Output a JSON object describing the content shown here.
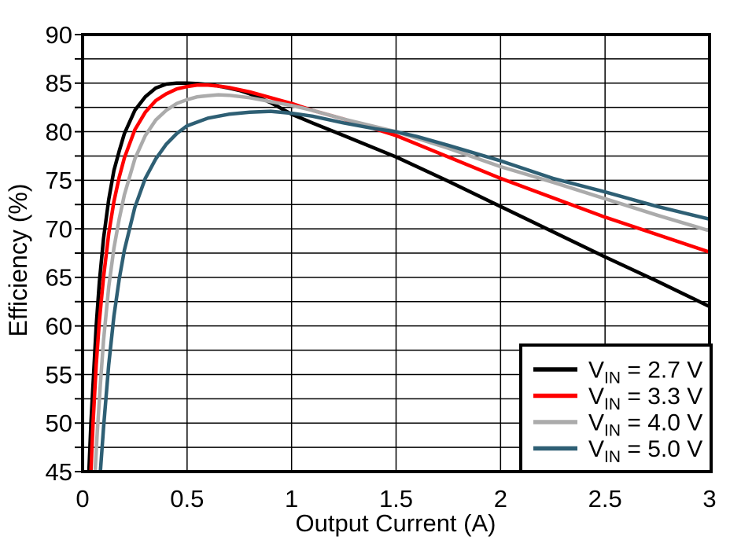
{
  "chart_data": {
    "type": "line",
    "title": "",
    "xlabel": "Output Current (A)",
    "ylabel": "Efficiency (%)",
    "xlim": [
      0,
      3
    ],
    "ylim": [
      45,
      90
    ],
    "x_gridline_step": 0.5,
    "y_gridline_step": 2.5,
    "x_tick_label_step": 0.5,
    "y_tick_label_step": 5,
    "x_tick_labels": [
      "0",
      "0.5",
      "1",
      "1.5",
      "2",
      "2.5",
      "3"
    ],
    "y_tick_labels": [
      "45",
      "50",
      "55",
      "60",
      "65",
      "70",
      "75",
      "80",
      "85",
      "90"
    ],
    "grid": true,
    "legend_position": "bottom-right",
    "frame_color": "#000000",
    "grid_color": "#000000",
    "series": [
      {
        "name": "VIN = 2.7 V",
        "label_main": "V",
        "label_sub": "IN",
        "label_tail": " = 2.7 V",
        "color": "#000000",
        "points": [
          [
            0.03,
            45
          ],
          [
            0.04,
            50
          ],
          [
            0.05,
            54
          ],
          [
            0.065,
            60
          ],
          [
            0.08,
            64.5
          ],
          [
            0.1,
            69
          ],
          [
            0.125,
            73
          ],
          [
            0.15,
            76
          ],
          [
            0.175,
            78
          ],
          [
            0.2,
            79.8
          ],
          [
            0.25,
            82.2
          ],
          [
            0.3,
            83.6
          ],
          [
            0.35,
            84.5
          ],
          [
            0.4,
            84.9
          ],
          [
            0.45,
            85
          ],
          [
            0.5,
            85
          ],
          [
            0.55,
            84.95
          ],
          [
            0.6,
            84.85
          ],
          [
            0.65,
            84.7
          ],
          [
            0.7,
            84.5
          ],
          [
            0.75,
            84.25
          ],
          [
            0.8,
            83.9
          ],
          [
            0.9,
            83
          ],
          [
            1,
            81.8
          ],
          [
            1.1,
            80.9
          ],
          [
            1.25,
            79.6
          ],
          [
            1.5,
            77.4
          ],
          [
            1.75,
            74.9
          ],
          [
            2,
            72.3
          ],
          [
            2.25,
            69.7
          ],
          [
            2.5,
            67.1
          ],
          [
            2.75,
            64.6
          ],
          [
            3,
            62
          ]
        ]
      },
      {
        "name": "VIN = 3.3 V",
        "label_main": "V",
        "label_sub": "IN",
        "label_tail": " = 3.3 V",
        "color": "#ff0000",
        "points": [
          [
            0.04,
            45
          ],
          [
            0.05,
            50
          ],
          [
            0.065,
            56
          ],
          [
            0.08,
            60.5
          ],
          [
            0.1,
            65
          ],
          [
            0.125,
            69.5
          ],
          [
            0.15,
            72.8
          ],
          [
            0.175,
            75.3
          ],
          [
            0.2,
            77.3
          ],
          [
            0.25,
            80.2
          ],
          [
            0.3,
            82
          ],
          [
            0.35,
            83.2
          ],
          [
            0.4,
            83.9
          ],
          [
            0.45,
            84.4
          ],
          [
            0.5,
            84.65
          ],
          [
            0.55,
            84.8
          ],
          [
            0.6,
            84.8
          ],
          [
            0.65,
            84.7
          ],
          [
            0.7,
            84.55
          ],
          [
            0.8,
            84.1
          ],
          [
            0.9,
            83.5
          ],
          [
            1,
            82.9
          ],
          [
            1.1,
            82.2
          ],
          [
            1.25,
            81.3
          ],
          [
            1.5,
            79.6
          ],
          [
            1.75,
            77.4
          ],
          [
            2,
            75.2
          ],
          [
            2.25,
            73.2
          ],
          [
            2.5,
            71.2
          ],
          [
            2.75,
            69.4
          ],
          [
            3,
            67.6
          ]
        ]
      },
      {
        "name": "VIN = 4.0 V",
        "label_main": "V",
        "label_sub": "IN",
        "label_tail": " = 4.0 V",
        "color": "#ababab",
        "points": [
          [
            0.06,
            45
          ],
          [
            0.07,
            49
          ],
          [
            0.085,
            54
          ],
          [
            0.1,
            58.5
          ],
          [
            0.125,
            64
          ],
          [
            0.15,
            68
          ],
          [
            0.175,
            71
          ],
          [
            0.2,
            73.5
          ],
          [
            0.25,
            77.2
          ],
          [
            0.3,
            79.6
          ],
          [
            0.35,
            81.2
          ],
          [
            0.4,
            82.2
          ],
          [
            0.45,
            82.9
          ],
          [
            0.5,
            83.3
          ],
          [
            0.55,
            83.6
          ],
          [
            0.6,
            83.7
          ],
          [
            0.65,
            83.8
          ],
          [
            0.7,
            83.75
          ],
          [
            0.8,
            83.5
          ],
          [
            0.9,
            83.1
          ],
          [
            1,
            82.7
          ],
          [
            1.1,
            82.2
          ],
          [
            1.25,
            81.3
          ],
          [
            1.5,
            80
          ],
          [
            1.75,
            78.3
          ],
          [
            2,
            76.4
          ],
          [
            2.25,
            74.8
          ],
          [
            2.5,
            73.1
          ],
          [
            2.75,
            71.4
          ],
          [
            3,
            69.8
          ]
        ]
      },
      {
        "name": "VIN = 5.0 V",
        "label_main": "V",
        "label_sub": "IN",
        "label_tail": " = 5.0 V",
        "color": "#2e5f74",
        "points": [
          [
            0.085,
            45
          ],
          [
            0.1,
            49.5
          ],
          [
            0.125,
            56
          ],
          [
            0.15,
            61
          ],
          [
            0.175,
            64.8
          ],
          [
            0.2,
            67.8
          ],
          [
            0.25,
            72.2
          ],
          [
            0.3,
            75.2
          ],
          [
            0.35,
            77.2
          ],
          [
            0.4,
            78.7
          ],
          [
            0.45,
            79.8
          ],
          [
            0.5,
            80.6
          ],
          [
            0.6,
            81.4
          ],
          [
            0.7,
            81.8
          ],
          [
            0.8,
            82
          ],
          [
            0.9,
            82.1
          ],
          [
            1,
            81.9
          ],
          [
            1.1,
            81.6
          ],
          [
            1.25,
            80.9
          ],
          [
            1.4,
            80.3
          ],
          [
            1.5,
            80
          ],
          [
            1.6,
            79.5
          ],
          [
            1.75,
            78.6
          ],
          [
            2,
            77
          ],
          [
            2.25,
            75.2
          ],
          [
            2.5,
            73.8
          ],
          [
            2.75,
            72.3
          ],
          [
            3,
            71
          ]
        ]
      }
    ]
  }
}
